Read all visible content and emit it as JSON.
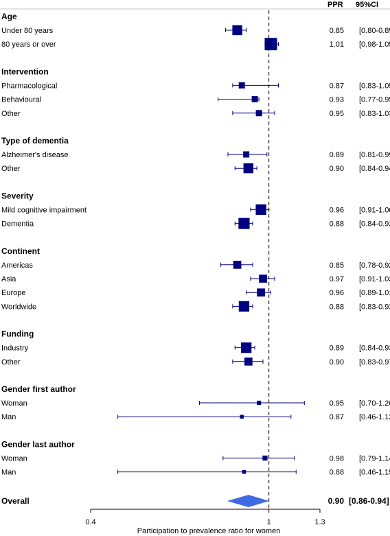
{
  "chart_data": {
    "type": "forest",
    "columns": {
      "ppr": "PPR",
      "ci": "95%CI"
    },
    "xlabel": "Participation to prevalence ratio for women",
    "x_axis": {
      "ticks": [
        0.4,
        1,
        1.3
      ],
      "tick_labels": [
        "0.4",
        "1",
        "1.3"
      ],
      "xlim": [
        0.4,
        1.3
      ],
      "scale": "log",
      "reference_line": 1
    },
    "groups": [
      {
        "name": "Age",
        "rows": [
          {
            "label": "Under 80 years",
            "ppr": 0.85,
            "lo": 0.8,
            "hi": 0.89,
            "ppr_text": "0.85",
            "ci_text": "[0.80-0.89]",
            "weight": 1.6
          },
          {
            "label": "80  years or over",
            "ppr": 1.01,
            "lo": 0.98,
            "hi": 1.05,
            "ppr_text": "1.01",
            "ci_text": "[0.98-1.05]",
            "weight": 2.0
          }
        ]
      },
      {
        "name": "Intervention",
        "rows": [
          {
            "label": "Pharmacological",
            "ppr": 0.87,
            "lo": 0.83,
            "hi": 1.05,
            "ppr_text": "0.87",
            "ci_text": "[0.83-1.05]",
            "weight": 1.0
          },
          {
            "label": "Behavioural",
            "ppr": 0.93,
            "lo": 0.77,
            "hi": 0.95,
            "ppr_text": "0.93",
            "ci_text": "[0.77-0.95]",
            "weight": 1.0
          },
          {
            "label": "Other",
            "ppr": 0.95,
            "lo": 0.83,
            "hi": 1.03,
            "ppr_text": "0.95",
            "ci_text": "[0.83-1.03]",
            "weight": 1.0
          }
        ]
      },
      {
        "name": "Type of dementia",
        "rows": [
          {
            "label": "Alzheimer's  disease",
            "ppr": 0.89,
            "lo": 0.81,
            "hi": 0.99,
            "ppr_text": "0.89",
            "ci_text": "[0.81-0.99]",
            "weight": 1.0
          },
          {
            "label": "Other",
            "ppr": 0.9,
            "lo": 0.84,
            "hi": 0.94,
            "ppr_text": "0.90",
            "ci_text": "[0.84-0.94]",
            "weight": 1.6
          }
        ]
      },
      {
        "name": "Severity",
        "rows": [
          {
            "label": "Mild  cognitive impairment",
            "ppr": 0.96,
            "lo": 0.91,
            "hi": 1.0,
            "ppr_text": "0.96",
            "ci_text": "[0.91-1.00]",
            "weight": 1.7
          },
          {
            "label": "Dementia",
            "ppr": 0.88,
            "lo": 0.84,
            "hi": 0.92,
            "ppr_text": "0.88",
            "ci_text": "[0.84-0.92]",
            "weight": 1.8
          }
        ]
      },
      {
        "name": "Continent",
        "rows": [
          {
            "label": "Americas",
            "ppr": 0.85,
            "lo": 0.78,
            "hi": 0.92,
            "ppr_text": "0.85",
            "ci_text": "[0.78-0.92]",
            "weight": 1.3
          },
          {
            "label": "Asia",
            "ppr": 0.97,
            "lo": 0.91,
            "hi": 1.03,
            "ppr_text": "0.97",
            "ci_text": "[0.91-1.03]",
            "weight": 1.3
          },
          {
            "label": "Europe",
            "ppr": 0.96,
            "lo": 0.89,
            "hi": 1.01,
            "ppr_text": "0.96",
            "ci_text": "[0.89-1.01]",
            "weight": 1.3
          },
          {
            "label": "Worldwide",
            "ppr": 0.88,
            "lo": 0.83,
            "hi": 0.92,
            "ppr_text": "0.88",
            "ci_text": "[0.83-0.92]",
            "weight": 1.7
          }
        ]
      },
      {
        "name": "Funding",
        "rows": [
          {
            "label": "Industry",
            "ppr": 0.89,
            "lo": 0.84,
            "hi": 0.93,
            "ppr_text": "0.89",
            "ci_text": "[0.84-0.93]",
            "weight": 1.7
          },
          {
            "label": "Other",
            "ppr": 0.9,
            "lo": 0.83,
            "hi": 0.97,
            "ppr_text": "0.90",
            "ci_text": "[0.83-0.97]",
            "weight": 1.3
          }
        ]
      },
      {
        "name": "Gender first author",
        "rows": [
          {
            "label": "Woman",
            "ppr": 0.95,
            "lo": 0.7,
            "hi": 1.2,
            "ppr_text": "0.95",
            "ci_text": "[0.70-1.20]",
            "weight": 0.7
          },
          {
            "label": "Man",
            "ppr": 0.87,
            "lo": 0.46,
            "hi": 1.12,
            "ppr_text": "0.87",
            "ci_text": "[0.46-1.12]",
            "weight": 0.6
          }
        ]
      },
      {
        "name": "Gender last author",
        "rows": [
          {
            "label": "Woman",
            "ppr": 0.98,
            "lo": 0.79,
            "hi": 1.14,
            "ppr_text": "0.98",
            "ci_text": "[0.79-1.14]",
            "weight": 0.8
          },
          {
            "label": "Man",
            "ppr": 0.88,
            "lo": 0.46,
            "hi": 1.15,
            "ppr_text": "0.88",
            "ci_text": "[0.46-1.15]",
            "weight": 0.6
          }
        ]
      }
    ],
    "overall": {
      "label": "Overall",
      "ppr": 0.9,
      "lo": 0.86,
      "hi": 0.94,
      "ppr_text": "0.90",
      "ci_text": "[0.86-0.94]"
    },
    "colors": {
      "marker": "#000080",
      "overall": "#4169e1",
      "line": "#000080",
      "axis": "#000000"
    }
  }
}
